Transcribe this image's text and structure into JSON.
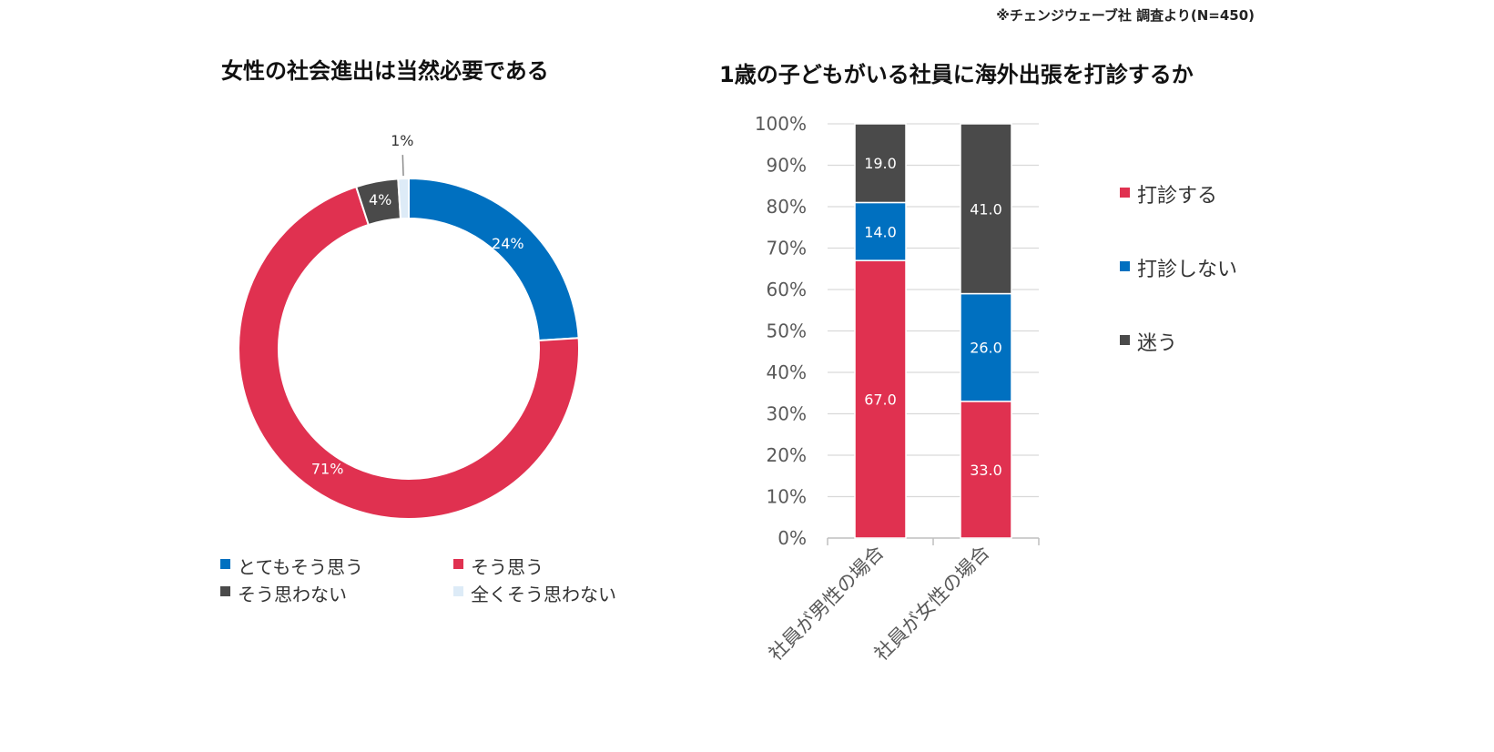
{
  "source_note": "※チェンジウェーブ社 調査より(N=450)",
  "chart_data": [
    {
      "type": "pie",
      "variant": "donut",
      "title": "女性の社会進出は当然必要である",
      "categories": [
        "とてもそう思う",
        "そう思う",
        "そう思わない",
        "全くそう思わない"
      ],
      "values": [
        24,
        71,
        4,
        1
      ],
      "labels": [
        "24%",
        "71%",
        "4%",
        "1%"
      ],
      "colors": [
        "#0070C0",
        "#E03150",
        "#4A4A4A",
        "#DDEBF7"
      ],
      "legend_position": "bottom"
    },
    {
      "type": "bar",
      "stacked": true,
      "title": "1歳の子どもがいる社員に海外出張を打診するか",
      "categories": [
        "社員が男性の場合",
        "社員が女性の場合"
      ],
      "series": [
        {
          "name": "打診する",
          "values": [
            67.0,
            33.0
          ],
          "labels": [
            "67.0",
            "33.0"
          ],
          "color": "#E03150"
        },
        {
          "name": "打診しない",
          "values": [
            14.0,
            26.0
          ],
          "labels": [
            "14.0",
            "26.0"
          ],
          "color": "#0070C0"
        },
        {
          "name": "迷う",
          "values": [
            19.0,
            41.0
          ],
          "labels": [
            "19.0",
            "41.0"
          ],
          "color": "#4A4A4A"
        }
      ],
      "ylim": [
        0,
        100
      ],
      "yticks": [
        "0%",
        "10%",
        "20%",
        "30%",
        "40%",
        "50%",
        "60%",
        "70%",
        "80%",
        "90%",
        "100%"
      ],
      "grid": true,
      "legend_position": "right"
    }
  ]
}
